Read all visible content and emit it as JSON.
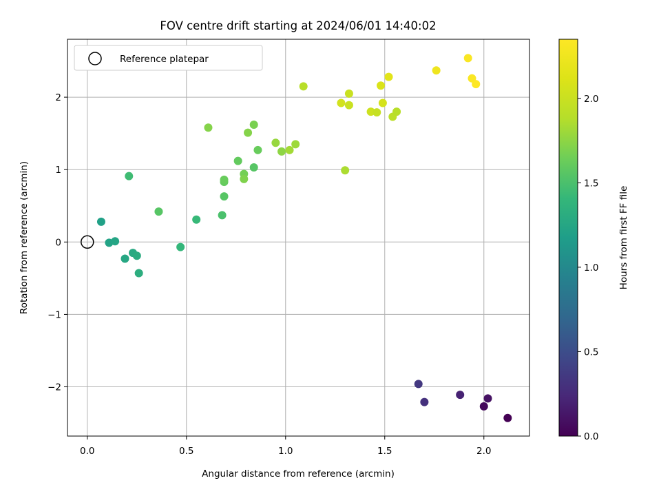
{
  "chart_data": {
    "type": "scatter",
    "title": "FOV centre drift starting at 2024/06/01 14:40:02",
    "xlabel": "Angular distance from reference (arcmin)",
    "ylabel": "Rotation from reference (arcmin)",
    "xlim": [
      -0.1,
      2.23
    ],
    "ylim": [
      -2.68,
      2.8
    ],
    "xticks": [
      0.0,
      0.5,
      1.0,
      1.5,
      2.0
    ],
    "xtick_labels": [
      "0.0",
      "0.5",
      "1.0",
      "1.5",
      "2.0"
    ],
    "yticks": [
      -2,
      -1,
      0,
      1,
      2
    ],
    "ytick_labels": [
      "−2",
      "−1",
      "0",
      "1",
      "2"
    ],
    "grid": true,
    "legend": {
      "placement": "top-left",
      "label": "Reference platepar"
    },
    "reference_point": {
      "x": 0.0,
      "y": 0.0
    },
    "colorbar": {
      "label": "Hours from first FF file",
      "colormap": "viridis",
      "range": [
        0.0,
        2.35
      ],
      "ticks": [
        0.0,
        0.5,
        1.0,
        1.5,
        2.0
      ],
      "tick_labels": [
        "0.0",
        "0.5",
        "1.0",
        "1.5",
        "2.0"
      ]
    },
    "series": [
      {
        "x": [
          2.12,
          2.0,
          2.02,
          1.88,
          1.7,
          1.67,
          0.07,
          0.11,
          0.14,
          0.19,
          0.23,
          0.25,
          0.26,
          0.21,
          0.36,
          0.47,
          0.55,
          0.68,
          0.69,
          0.69,
          0.69,
          0.61,
          0.76,
          0.79,
          0.79,
          0.81,
          0.84,
          0.84,
          0.86,
          0.95,
          0.98,
          1.02,
          1.05,
          1.09,
          1.3,
          1.28,
          1.32,
          1.32,
          1.43,
          1.46,
          1.48,
          1.49,
          1.52,
          1.54,
          1.56,
          1.76,
          1.92,
          1.94,
          1.96
        ],
        "y": [
          -2.43,
          -2.27,
          -2.16,
          -2.11,
          -2.21,
          -1.96,
          0.28,
          -0.01,
          0.01,
          -0.23,
          -0.15,
          -0.19,
          -0.43,
          0.91,
          0.42,
          -0.07,
          0.31,
          0.37,
          0.63,
          0.83,
          0.86,
          1.58,
          1.12,
          0.94,
          0.87,
          1.51,
          1.62,
          1.03,
          1.27,
          1.37,
          1.25,
          1.27,
          1.35,
          2.15,
          0.99,
          1.92,
          1.89,
          2.05,
          1.8,
          1.79,
          2.16,
          1.92,
          2.28,
          1.73,
          1.8,
          2.37,
          2.54,
          2.26,
          2.18
        ],
        "hours": [
          0.0,
          0.05,
          0.1,
          0.2,
          0.3,
          0.35,
          1.2,
          1.22,
          1.24,
          1.26,
          1.28,
          1.3,
          1.32,
          1.45,
          1.55,
          1.4,
          1.42,
          1.5,
          1.55,
          1.6,
          1.62,
          1.72,
          1.6,
          1.66,
          1.7,
          1.72,
          1.68,
          1.55,
          1.62,
          1.78,
          1.75,
          1.82,
          1.8,
          1.9,
          1.85,
          2.05,
          2.0,
          2.0,
          2.02,
          1.98,
          2.1,
          2.06,
          2.15,
          1.92,
          1.9,
          2.25,
          2.32,
          2.33,
          2.35
        ]
      }
    ]
  }
}
